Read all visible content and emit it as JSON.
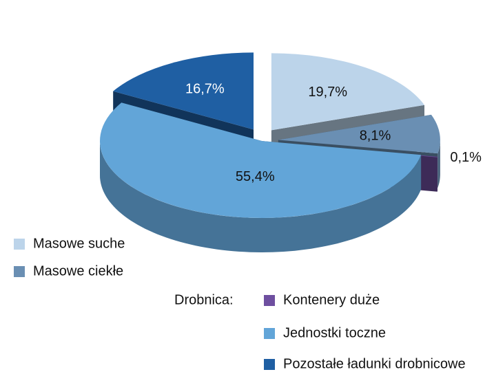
{
  "chart_data": {
    "type": "pie3d",
    "categories": [
      "Masowe suche",
      "Masowe ciekłe",
      "Kontenery duże",
      "Jednostki toczne",
      "Pozostałe ładunki drobnicowe"
    ],
    "values": [
      19.7,
      8.1,
      0.1,
      55.4,
      16.7
    ],
    "value_labels": [
      "19,7%",
      "8,1%",
      "0,1%",
      "55,4%",
      "16,7%"
    ],
    "colors": [
      "#bcd4ea",
      "#6a8fb3",
      "#6e4fa0",
      "#62a5d8",
      "#1f5fa3"
    ],
    "legend_group_label": "Drobnica:"
  }
}
